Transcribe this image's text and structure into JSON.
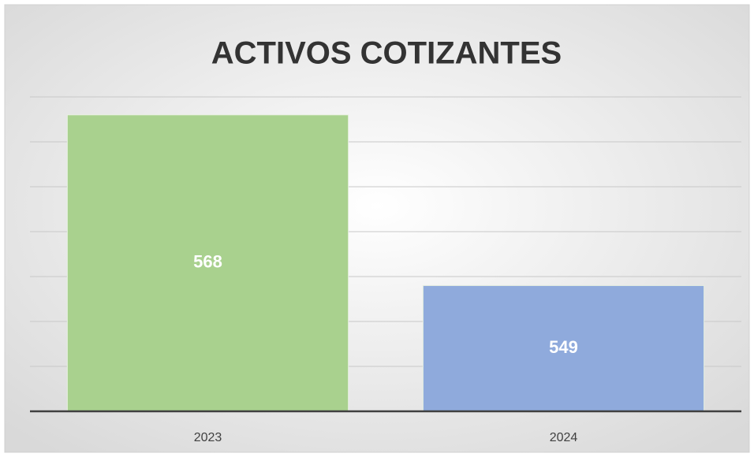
{
  "chart_data": {
    "type": "bar",
    "title": "ACTIVOS COTIZANTES",
    "categories": [
      "2023",
      "2024"
    ],
    "series": [
      {
        "name": null,
        "colors": [
          "#a9d18e",
          "#8faadc"
        ],
        "values": [
          568,
          549
        ]
      }
    ],
    "ylim": [
      535,
      570
    ],
    "yticks": [
      535,
      540,
      545,
      550,
      555,
      560,
      565,
      570
    ],
    "grid": true
  }
}
